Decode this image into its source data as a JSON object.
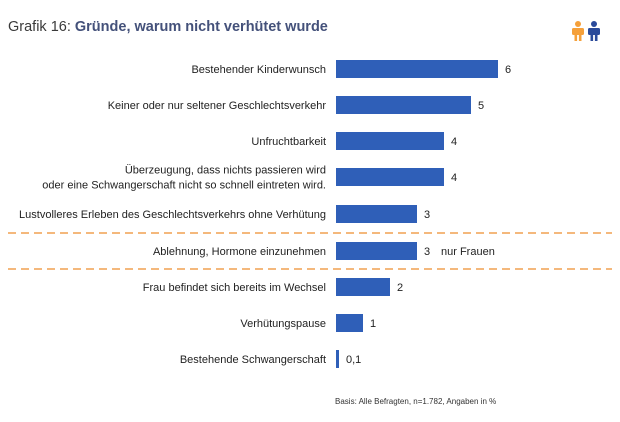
{
  "header": {
    "title_prefix": "Grafik 16:",
    "title": "Gründe, warum nicht verhütet wurde",
    "icon": "people-icon"
  },
  "colors": {
    "bar": "#2f5fb8",
    "separator": "#f0a050",
    "title": "#44517a",
    "icon_female": "#f5a03a",
    "icon_male": "#2a4a9a"
  },
  "chart_data": {
    "type": "bar",
    "orientation": "horizontal",
    "categories": [
      [
        "Bestehender Kinderwunsch"
      ],
      [
        "Keiner oder nur seltener Geschlechtsverkehr"
      ],
      [
        "Unfruchtbarkeit"
      ],
      [
        "Überzeugung, dass nichts passieren wird",
        "oder eine Schwangerschaft nicht so schnell eintreten wird."
      ],
      [
        "Lustvolleres Erleben des Geschlechtsverkehrs ohne Verhütung"
      ],
      [
        "Ablehnung, Hormone einzunehmen"
      ],
      [
        "Frau befindet sich bereits im Wechsel"
      ],
      [
        "Verhütungspause"
      ],
      [
        "Bestehende Schwangerschaft"
      ]
    ],
    "values": [
      6,
      5,
      4,
      4,
      3,
      3,
      2,
      1,
      0.1
    ],
    "value_labels": [
      "6",
      "5",
      "4",
      "4",
      "3",
      "3",
      "2",
      "1",
      "0,1"
    ],
    "annotations": [
      {
        "category_index": 5,
        "text": "nur Frauen"
      }
    ],
    "separators_before_index": [
      5,
      6
    ],
    "xlim": [
      0,
      6
    ],
    "grid": false,
    "legend": "none"
  },
  "footnote": "Basis: Alle Befragten, n=1.782, Angaben in %"
}
